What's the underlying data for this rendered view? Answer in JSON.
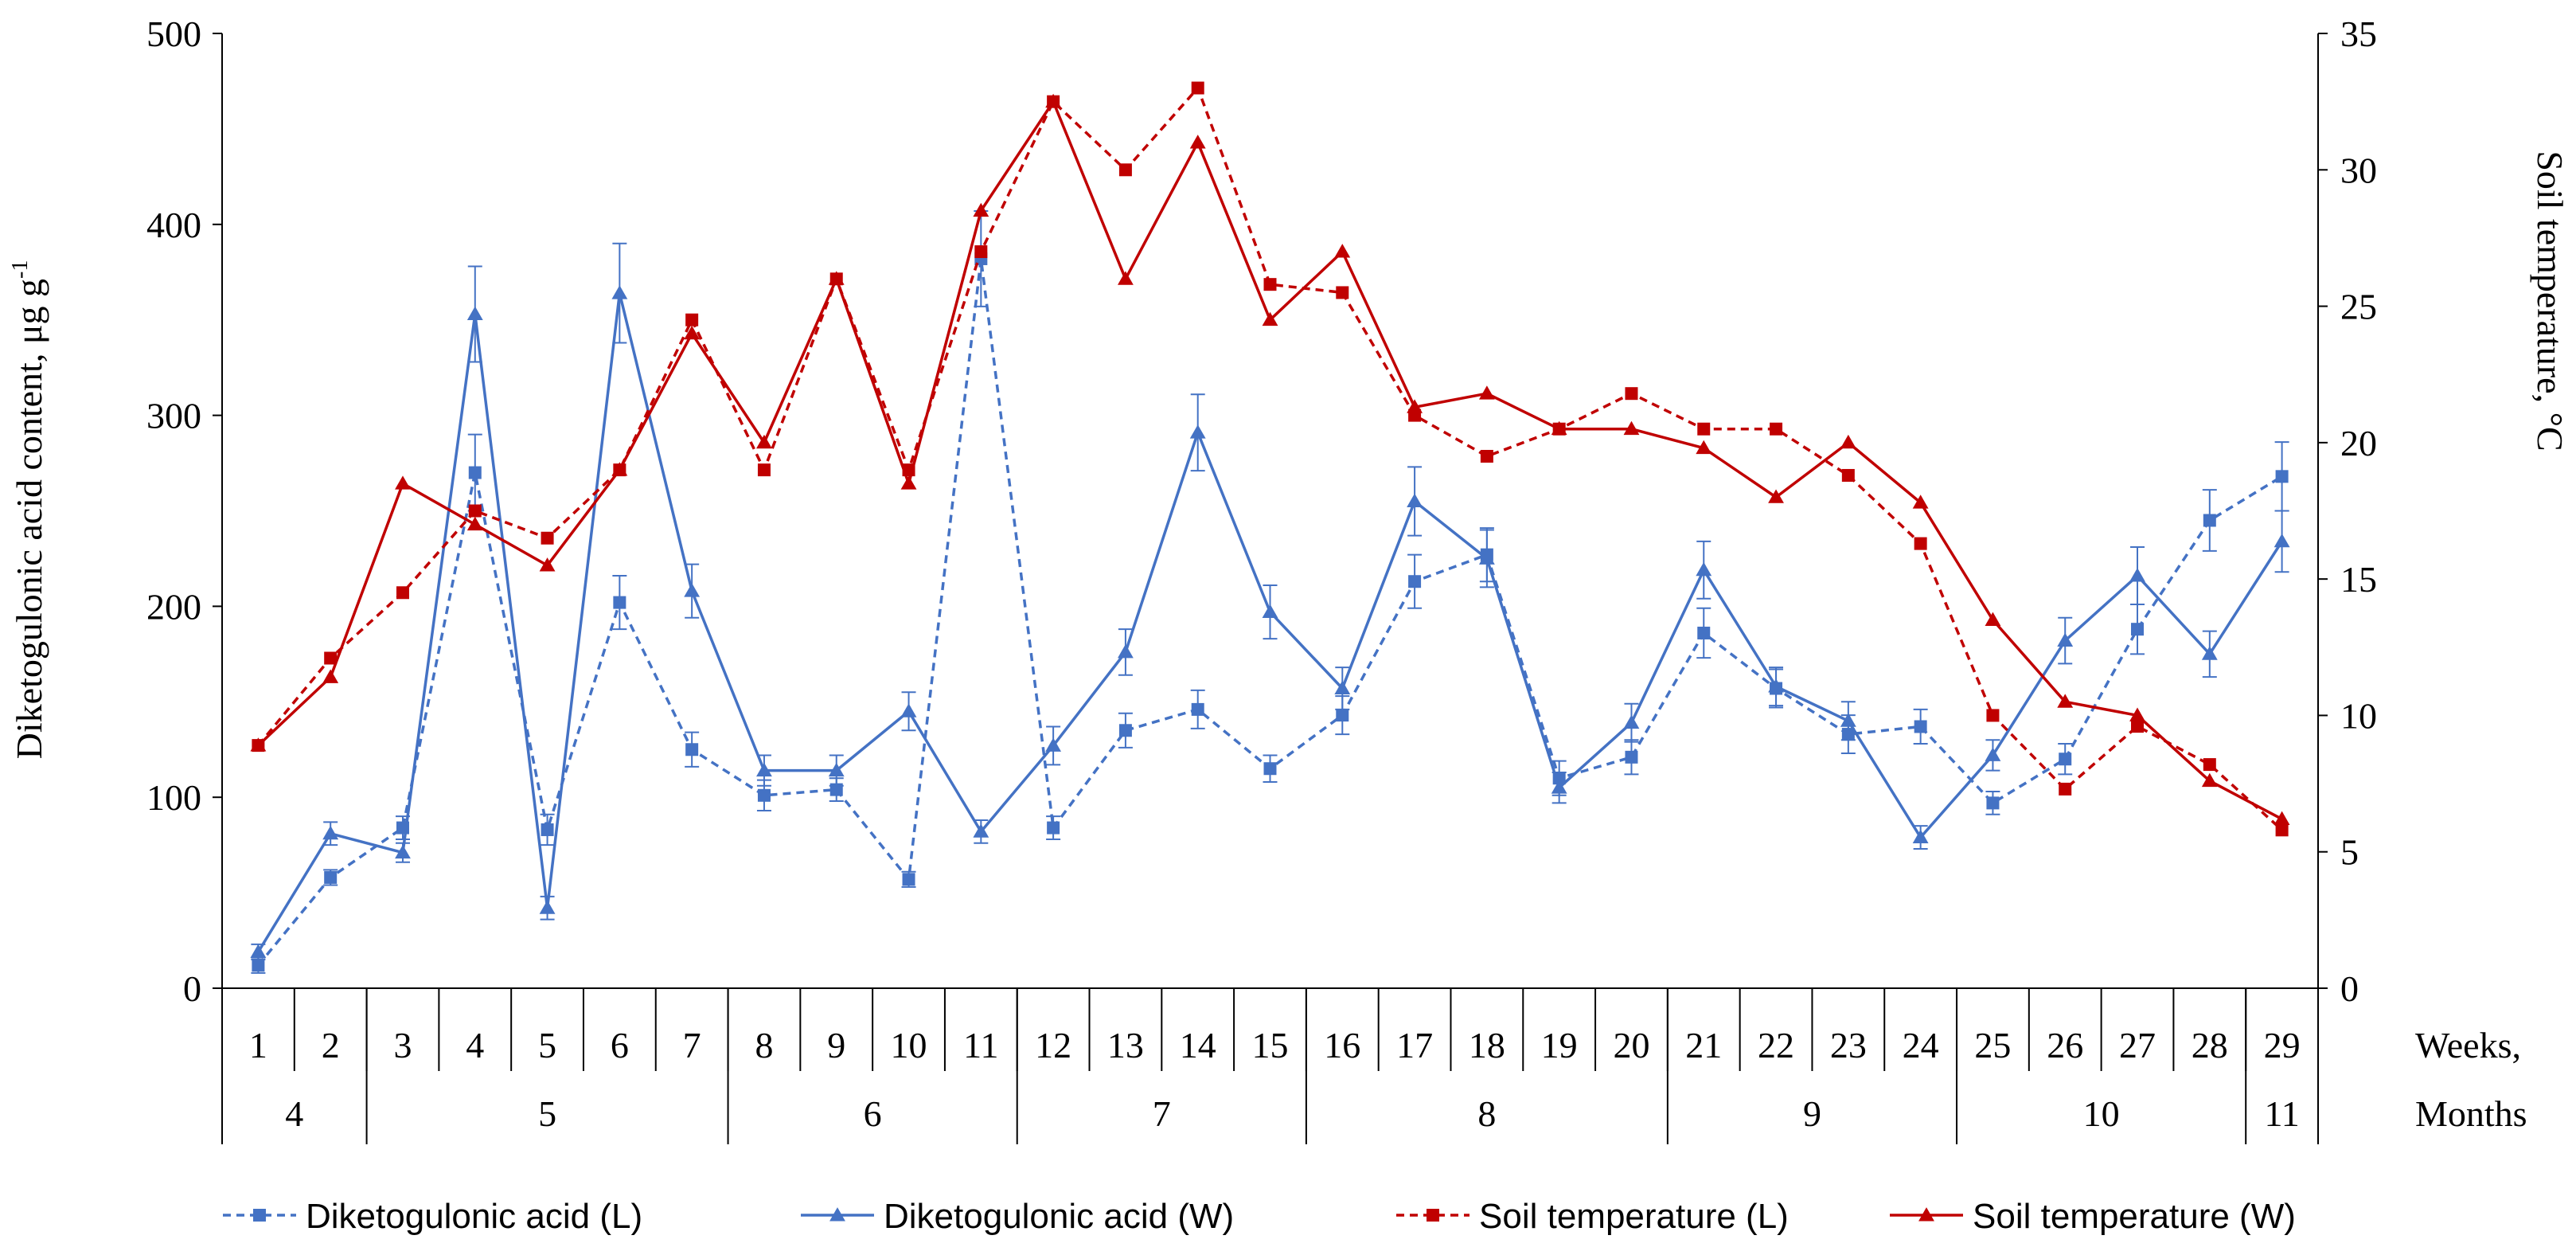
{
  "chart_data": {
    "type": "line",
    "y_left": {
      "label": "Diketogulonic acid content, μg g",
      "label_superscript": "-1",
      "range": [
        0,
        500
      ],
      "ticks": [
        "0",
        "100",
        "200",
        "300",
        "400",
        "500"
      ]
    },
    "y_right": {
      "label": "Soil temperature, °C",
      "range": [
        0,
        35
      ],
      "ticks": [
        "0",
        "5",
        "10",
        "15",
        "20",
        "25",
        "30",
        "35"
      ]
    },
    "x_weeks": {
      "label": "Weeks,",
      "categories": [
        "1",
        "2",
        "3",
        "4",
        "5",
        "6",
        "7",
        "8",
        "9",
        "10",
        "11",
        "12",
        "13",
        "14",
        "15",
        "16",
        "17",
        "18",
        "19",
        "20",
        "21",
        "22",
        "23",
        "24",
        "25",
        "26",
        "27",
        "28",
        "29"
      ]
    },
    "x_months": {
      "label": "Months",
      "groups": [
        {
          "label": "4",
          "start_week": 1,
          "end_week": 2
        },
        {
          "label": "5",
          "start_week": 3,
          "end_week": 7
        },
        {
          "label": "6",
          "start_week": 8,
          "end_week": 11
        },
        {
          "label": "7",
          "start_week": 12,
          "end_week": 15
        },
        {
          "label": "8",
          "start_week": 16,
          "end_week": 20
        },
        {
          "label": "9",
          "start_week": 21,
          "end_week": 24
        },
        {
          "label": "10",
          "start_week": 25,
          "end_week": 28
        },
        {
          "label": "11",
          "start_week": 29,
          "end_week": 29
        }
      ]
    },
    "series": [
      {
        "name": "Diketogulonic acid (L)",
        "axis": "left",
        "color": "#4472C4",
        "dashed": true,
        "marker": "square",
        "values": [
          12,
          58,
          84,
          270,
          83,
          202,
          125,
          101,
          104,
          57,
          382,
          84,
          135,
          146,
          115,
          143,
          213,
          227,
          110,
          121,
          186,
          157,
          133,
          137,
          97,
          120,
          188,
          245,
          268
        ],
        "errors": [
          4,
          4,
          6,
          20,
          8,
          14,
          9,
          8,
          6,
          4,
          25,
          6,
          9,
          10,
          7,
          10,
          14,
          14,
          9,
          9,
          13,
          10,
          10,
          9,
          6,
          8,
          13,
          16,
          18
        ]
      },
      {
        "name": "Diketogulonic acid (W)",
        "axis": "left",
        "color": "#4472C4",
        "dashed": false,
        "marker": "triangle",
        "values": [
          19,
          81,
          71,
          353,
          42,
          364,
          208,
          114,
          114,
          145,
          82,
          127,
          176,
          291,
          197,
          157,
          255,
          225,
          105,
          139,
          219,
          158,
          140,
          79,
          122,
          182,
          216,
          175,
          234
        ],
        "errors": [
          4,
          6,
          5,
          25,
          6,
          26,
          14,
          8,
          8,
          10,
          6,
          10,
          12,
          20,
          14,
          11,
          18,
          15,
          8,
          10,
          15,
          10,
          10,
          6,
          8,
          12,
          15,
          12,
          16
        ]
      },
      {
        "name": "Soil temperature (L)",
        "axis": "right",
        "color": "#C00000",
        "dashed": true,
        "marker": "square",
        "values": [
          8.9,
          12.1,
          14.5,
          17.5,
          16.5,
          19.0,
          24.5,
          19.0,
          26.0,
          19.0,
          27.0,
          32.5,
          30.0,
          33.0,
          25.8,
          25.5,
          21.0,
          19.5,
          20.5,
          21.8,
          20.5,
          20.5,
          18.8,
          16.3,
          10.0,
          7.3,
          9.6,
          8.2,
          5.8
        ]
      },
      {
        "name": "Soil temperature (W)",
        "axis": "right",
        "color": "#C00000",
        "dashed": false,
        "marker": "triangle",
        "values": [
          8.9,
          11.4,
          18.5,
          17.0,
          15.5,
          19.0,
          24.0,
          20.0,
          26.0,
          18.5,
          28.5,
          32.5,
          26.0,
          31.0,
          24.5,
          27.0,
          21.3,
          21.8,
          20.5,
          20.5,
          19.8,
          18.0,
          20.0,
          17.8,
          13.5,
          10.5,
          10.0,
          7.6,
          6.2
        ]
      }
    ],
    "legend_position": "bottom",
    "grid": false
  }
}
